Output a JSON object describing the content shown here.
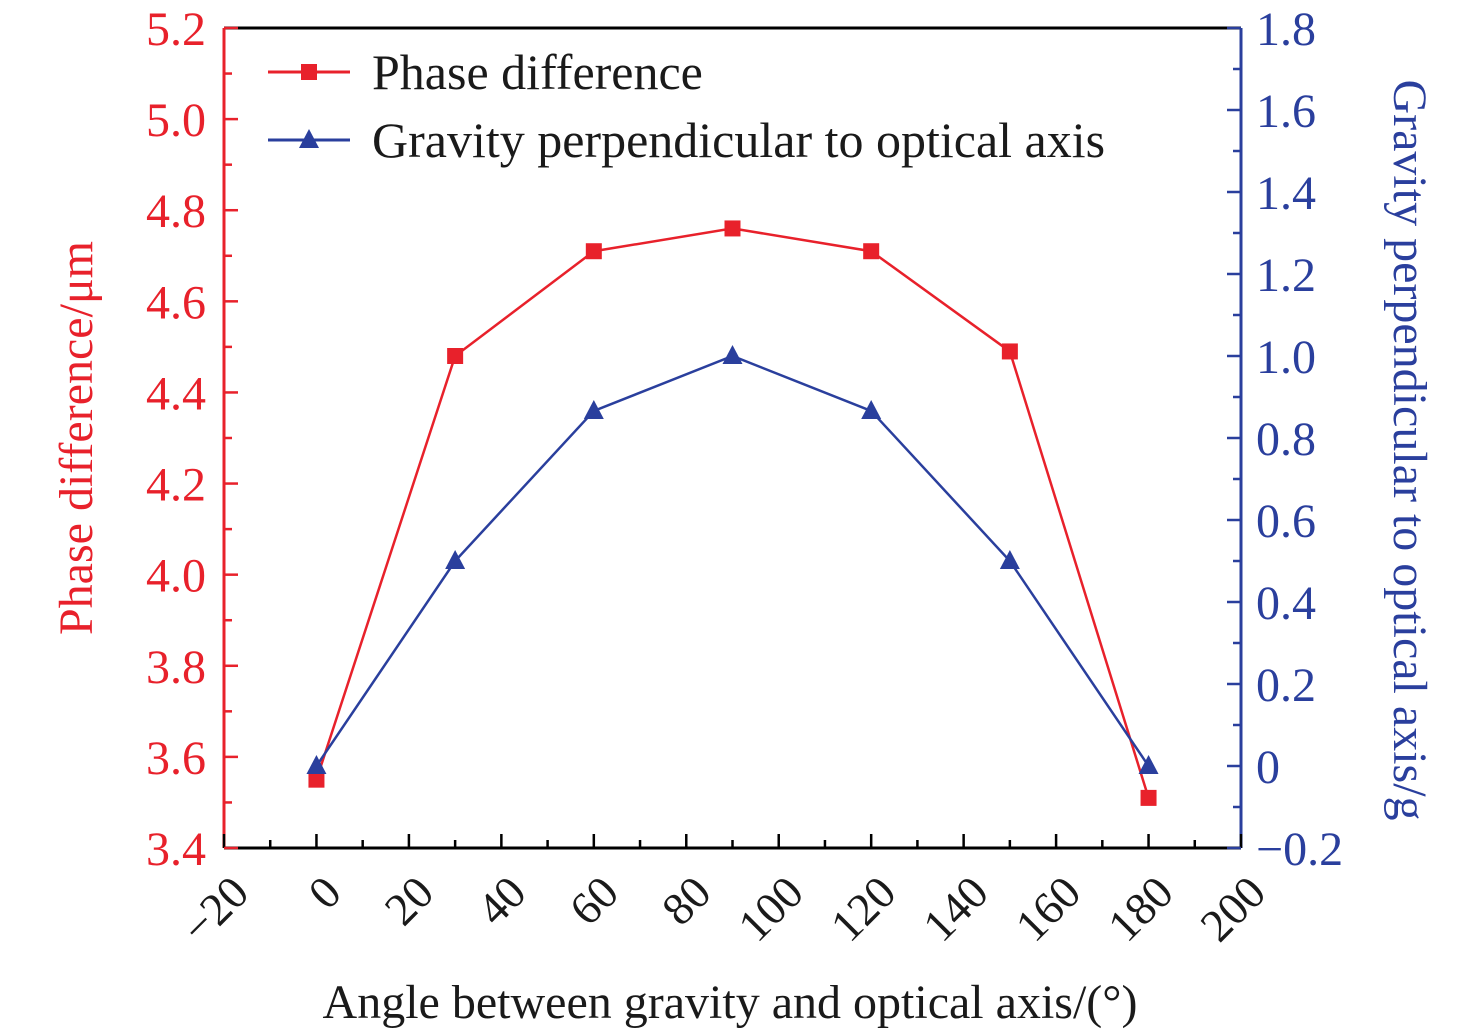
{
  "colors": {
    "left_axis": "#e8212b",
    "right_axis": "#2a3f9d",
    "frame": "#000000",
    "text": "#1a1a1a"
  },
  "chart_data": {
    "type": "line",
    "xlabel": "Angle between gravity and optical axis/(°)",
    "ylabel_left": "Phase difference/μm",
    "ylabel_right": "Gravity perpendicular to optical axis/g",
    "xlim": [
      -20,
      200
    ],
    "ylim_left": [
      3.4,
      5.2
    ],
    "ylim_right": [
      -0.2,
      1.8
    ],
    "x_ticks": [
      "−20",
      "0",
      "20",
      "40",
      "60",
      "80",
      "100",
      "120",
      "140",
      "160",
      "180",
      "200"
    ],
    "y_left_ticks": [
      "3.4",
      "3.6",
      "3.8",
      "4.0",
      "4.2",
      "4.4",
      "4.6",
      "4.8",
      "5.0",
      "5.2"
    ],
    "y_right_ticks": [
      "−0.2",
      "0",
      "0.2",
      "0.4",
      "0.6",
      "0.8",
      "1.0",
      "1.2",
      "1.4",
      "1.6",
      "1.8"
    ],
    "grid": false,
    "legend_position": "top-left",
    "series": [
      {
        "name": "Phase difference",
        "axis": "left",
        "marker": "square",
        "color": "#e8212b",
        "x": [
          0,
          30,
          60,
          90,
          120,
          150,
          180
        ],
        "y": [
          3.55,
          4.48,
          4.71,
          4.76,
          4.71,
          4.49,
          3.51
        ]
      },
      {
        "name": "Gravity perpendicular to optical axis",
        "axis": "right",
        "marker": "triangle",
        "color": "#2a3f9d",
        "x": [
          0,
          30,
          60,
          90,
          120,
          150,
          180
        ],
        "y": [
          0,
          0.5,
          0.866,
          1.0,
          0.866,
          0.5,
          0
        ]
      }
    ]
  }
}
